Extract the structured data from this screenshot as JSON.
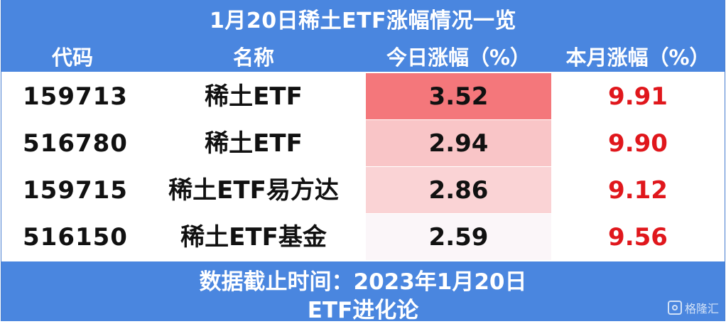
{
  "title": "1月20日稀土ETF涨幅情况一览",
  "columns": {
    "code": "代码",
    "name": "名称",
    "today": "今日涨幅（%）",
    "month": "本月涨幅（%）"
  },
  "rows": [
    {
      "code": "159713",
      "name": "稀土ETF",
      "today": "3.52",
      "month": "9.91",
      "heat_color": "#f4777b"
    },
    {
      "code": "516780",
      "name": "稀土ETF",
      "today": "2.94",
      "month": "9.90",
      "heat_color": "#f9c5c7"
    },
    {
      "code": "159715",
      "name": "稀土ETF易方达",
      "today": "2.86",
      "month": "9.12",
      "heat_color": "#fad3d5"
    },
    {
      "code": "516150",
      "name": "稀土ETF基金",
      "today": "2.59",
      "month": "9.56",
      "heat_color": "#fbf6f9"
    }
  ],
  "footer": {
    "line1": "数据截止时间：2023年1月20日",
    "line2": "ETF进化论"
  },
  "watermark": {
    "text": "格隆汇",
    "icon": "gelonghui-logo-icon"
  },
  "colors": {
    "header_bg": "#4a86df",
    "month_text": "#e0171c"
  }
}
